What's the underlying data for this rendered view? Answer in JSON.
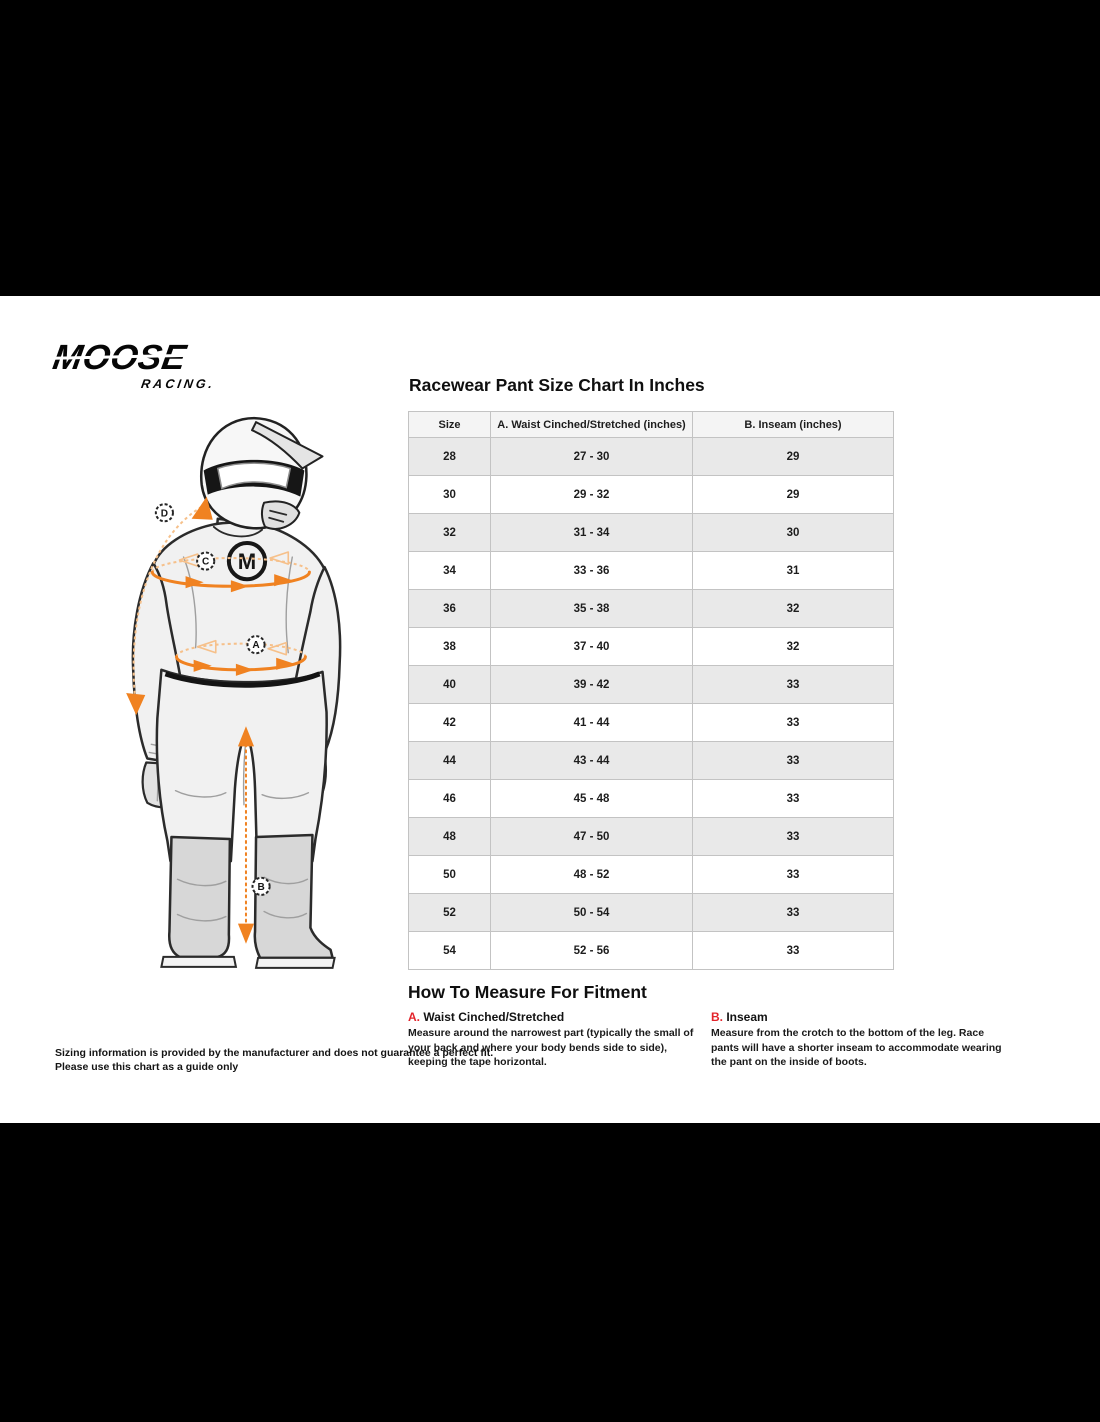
{
  "brand": {
    "line1": "MOOSE",
    "line2": "RACING."
  },
  "size_chart": {
    "title": "Racewear Pant Size Chart In Inches",
    "columns": [
      "Size",
      "A. Waist Cinched/Stretched (inches)",
      "B. Inseam (inches)"
    ],
    "rows": [
      [
        "28",
        "27 - 30",
        "29"
      ],
      [
        "30",
        "29 - 32",
        "29"
      ],
      [
        "32",
        "31 - 34",
        "30"
      ],
      [
        "34",
        "33 - 36",
        "31"
      ],
      [
        "36",
        "35 - 38",
        "32"
      ],
      [
        "38",
        "37 - 40",
        "32"
      ],
      [
        "40",
        "39 - 42",
        "33"
      ],
      [
        "42",
        "41 - 44",
        "33"
      ],
      [
        "44",
        "43 - 44",
        "33"
      ],
      [
        "46",
        "45 - 48",
        "33"
      ],
      [
        "48",
        "47 - 50",
        "33"
      ],
      [
        "50",
        "48 - 52",
        "33"
      ],
      [
        "52",
        "50 - 54",
        "33"
      ],
      [
        "54",
        "52 - 56",
        "33"
      ]
    ]
  },
  "how_to_measure": {
    "title": "How To Measure For Fitment",
    "sections": [
      {
        "label": "A.",
        "heading": "Waist Cinched/Stretched",
        "body": "Measure around the narrowest part (typically the small of your back and where your body bends side to side), keeping the tape horizontal."
      },
      {
        "label": "B.",
        "heading": "Inseam",
        "body": "Measure from the crotch to the bottom of the leg. Race pants will have a shorter inseam to accommodate wearing the pant on the inside of boots."
      }
    ]
  },
  "figure": {
    "labels": {
      "a": "A",
      "b": "B",
      "c": "C",
      "d": "D"
    },
    "logo_letter": "M"
  },
  "disclaimer": {
    "line1": "Sizing information is provided by the manufacturer and does not guarantee a perfect fit.",
    "line2": "Please use this chart as a guide only"
  },
  "colors": {
    "accent_orange": "#F08221",
    "accent_orange_light": "#F6C08A",
    "accent_red": "#E3242B"
  }
}
